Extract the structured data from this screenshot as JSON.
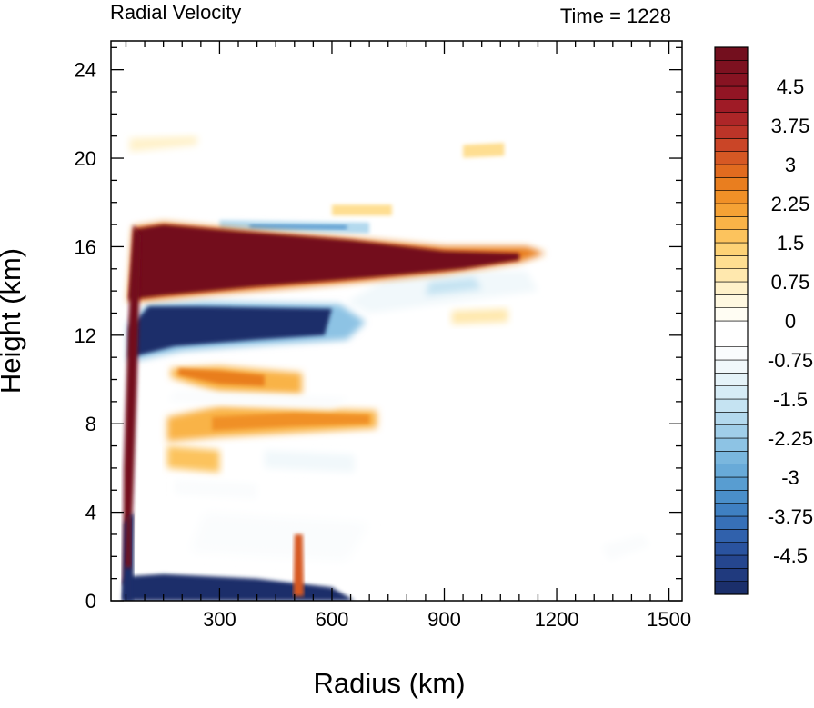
{
  "chart_data": {
    "type": "heatmap",
    "title_left": "Radial Velocity",
    "title_right": "Time = 1228",
    "xlabel": "Radius (km)",
    "ylabel": "Height (km)",
    "xlim": [
      10,
      1535
    ],
    "ylim": [
      0,
      25.3
    ],
    "x_ticks": [
      300,
      600,
      900,
      1200,
      1500
    ],
    "x_tick_labels": [
      "300",
      "600",
      "900",
      "1200",
      "1500"
    ],
    "y_ticks": [
      0,
      4,
      8,
      12,
      16,
      20,
      24
    ],
    "y_tick_labels": [
      "0",
      "4",
      "8",
      "12",
      "16",
      "20",
      "24"
    ],
    "colorbar": {
      "levels": [
        -5.25,
        -5.0,
        -4.75,
        -4.5,
        -4.25,
        -4.0,
        -3.75,
        -3.5,
        -3.25,
        -3.0,
        -2.75,
        -2.5,
        -2.25,
        -2.0,
        -1.75,
        -1.5,
        -1.25,
        -1.0,
        -0.75,
        -0.5,
        -0.25,
        0,
        0.25,
        0.5,
        0.75,
        1.0,
        1.25,
        1.5,
        1.75,
        2.0,
        2.25,
        2.5,
        2.75,
        3.0,
        3.25,
        3.5,
        3.75,
        4.0,
        4.25,
        4.5,
        4.75,
        5.0,
        5.25
      ],
      "labels": [
        {
          "value": 4.5,
          "text": "4.5"
        },
        {
          "value": 3.75,
          "text": "3.75"
        },
        {
          "value": 3.0,
          "text": "3"
        },
        {
          "value": 2.25,
          "text": "2.25"
        },
        {
          "value": 1.5,
          "text": "1.5"
        },
        {
          "value": 0.75,
          "text": "0.75"
        },
        {
          "value": 0.0,
          "text": "0"
        },
        {
          "value": -0.75,
          "text": "-0.75"
        },
        {
          "value": -1.5,
          "text": "-1.5"
        },
        {
          "value": -2.25,
          "text": "-2.25"
        },
        {
          "value": -3.0,
          "text": "-3"
        },
        {
          "value": -3.75,
          "text": "-3.75"
        },
        {
          "value": -4.5,
          "text": "-4.5"
        }
      ],
      "colors": [
        "#1b2f6b",
        "#203a7e",
        "#25468f",
        "#2a539f",
        "#3061ac",
        "#3770b8",
        "#3f80c2",
        "#4a8fca",
        "#589dd1",
        "#68aad8",
        "#7ab7de",
        "#8dc3e4",
        "#a0cee9",
        "#b3d9ee",
        "#c5e3f2",
        "#d6ecf6",
        "#e5f3f9",
        "#f1f8fb",
        "#fafcfd",
        "#ffffff",
        "#ffffff",
        "#fffdf3",
        "#fff8e0",
        "#fff1c9",
        "#ffe8ae",
        "#fede91",
        "#fdd276",
        "#fcc35d",
        "#f9b347",
        "#f5a235",
        "#f09027",
        "#e97e1f",
        "#e16b1f",
        "#d65824",
        "#ca4527",
        "#bc3428",
        "#ad2628",
        "#9f1b26",
        "#921524",
        "#871322",
        "#7d1120",
        "#730f1e"
      ]
    },
    "features": [
      {
        "name": "upper outflow jet",
        "sign": "positive",
        "value": 5.25,
        "r_range": [
          40,
          1200
        ],
        "z_range": [
          13.5,
          17.0
        ]
      },
      {
        "name": "return flow below outflow",
        "sign": "negative",
        "value": -5.25,
        "r_range": [
          50,
          680
        ],
        "z_range": [
          11.0,
          13.5
        ]
      },
      {
        "name": "mid-level outflow band",
        "sign": "positive",
        "value": 2.5,
        "r_range": [
          180,
          520
        ],
        "z_range": [
          9.3,
          10.5
        ]
      },
      {
        "name": "lower mid-level outflow band",
        "sign": "positive",
        "value": 2.25,
        "r_range": [
          300,
          720
        ],
        "z_range": [
          7.3,
          8.7
        ]
      },
      {
        "name": "boundary-layer inflow",
        "sign": "negative",
        "value": -5.25,
        "r_range": [
          50,
          660
        ],
        "z_range": [
          0,
          1.2
        ]
      },
      {
        "name": "eyewall outflow column",
        "sign": "positive",
        "value": 5.0,
        "r_range": [
          40,
          75
        ],
        "z_range": [
          0.8,
          17.0
        ]
      },
      {
        "name": "near-surface outflow spike",
        "sign": "positive",
        "value": 3.0,
        "r_range": [
          495,
          525
        ],
        "z_range": [
          0.2,
          3.0
        ]
      }
    ]
  }
}
